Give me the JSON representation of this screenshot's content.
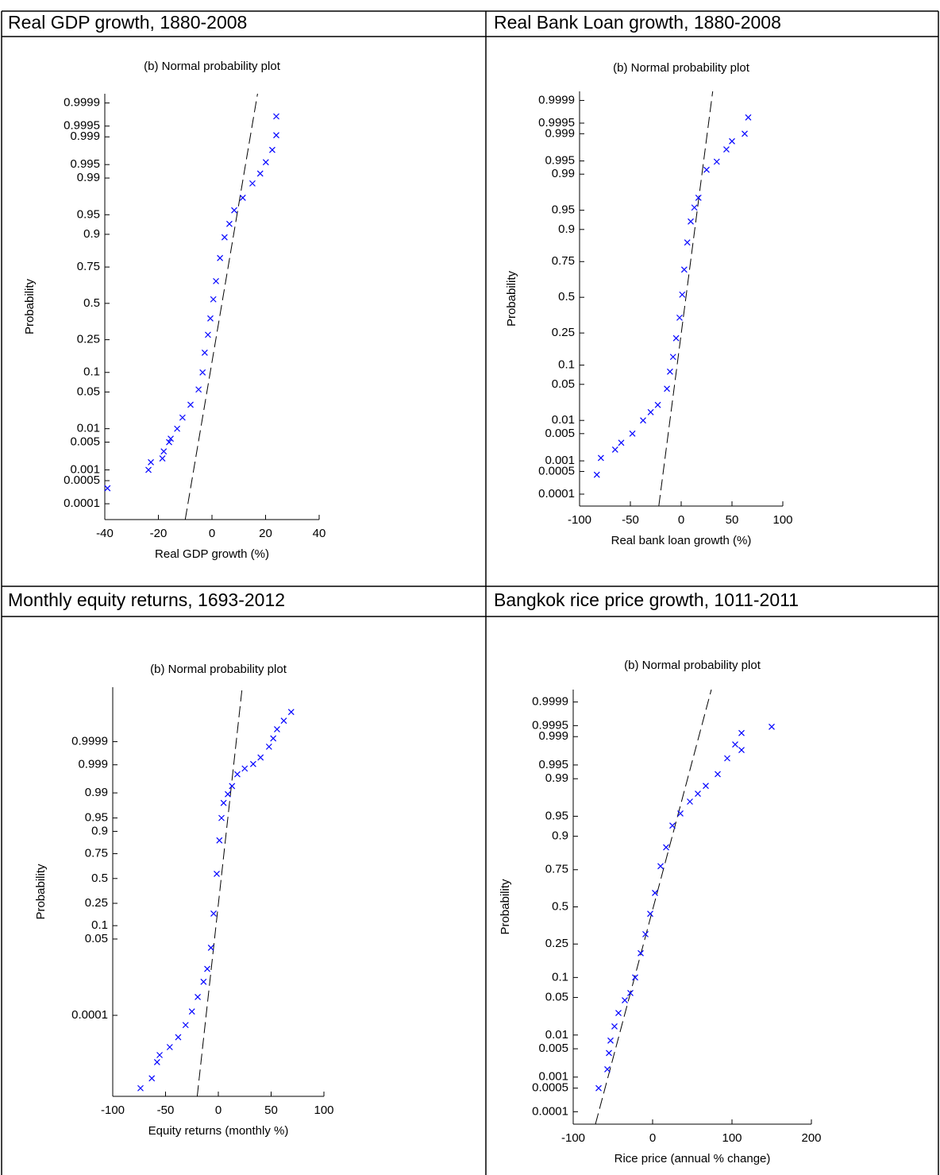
{
  "chart_data": [
    {
      "type": "scatter",
      "caption": "Real GDP growth, 1880-2008",
      "title": "(b) Normal probability plot",
      "xlabel": "Real GDP growth (%)",
      "ylabel": "Probability",
      "y_scale": "probit",
      "color": "#0000ff",
      "xlim": [
        -40,
        40
      ],
      "xticks": [
        -40,
        -20,
        0,
        20,
        40
      ],
      "ylim": [
        3e-05,
        0.99995
      ],
      "yticks": [
        0.0001,
        0.0005,
        0.001,
        0.005,
        0.01,
        0.05,
        0.1,
        0.25,
        0.5,
        0.75,
        0.9,
        0.95,
        0.99,
        0.995,
        0.999,
        0.9995,
        0.9999
      ],
      "x": [
        -39,
        -23.7,
        -22.8,
        -18.5,
        -18,
        -16,
        -15.4,
        -13,
        -11,
        -8,
        -5,
        -3.5,
        -2.7,
        -1.5,
        -0.6,
        0.5,
        1.5,
        3,
        4.7,
        6.5,
        8.3,
        11.5,
        15.1,
        18,
        20.1,
        22.5,
        24,
        24
      ],
      "values": [
        0.0003,
        0.001,
        0.0016,
        0.002,
        0.003,
        0.005,
        0.006,
        0.01,
        0.017,
        0.03,
        0.055,
        0.1,
        0.18,
        0.28,
        0.39,
        0.53,
        0.66,
        0.8,
        0.89,
        0.93,
        0.958,
        0.975,
        0.987,
        0.992,
        0.9956,
        0.9978,
        0.9991,
        0.99974
      ],
      "reference_line": {
        "x": [
          -10,
          17
        ],
        "y": [
          3e-05,
          0.99995
        ]
      }
    },
    {
      "type": "scatter",
      "caption": "Real Bank Loan growth, 1880-2008",
      "title": "(b) Normal probability plot",
      "xlabel": "Real bank loan growth (%)",
      "ylabel": "Probability",
      "y_scale": "probit",
      "color": "#0000ff",
      "xlim": [
        -100,
        100
      ],
      "xticks": [
        -100,
        -50,
        0,
        50,
        100
      ],
      "ylim": [
        4e-05,
        0.99995
      ],
      "yticks": [
        0.0001,
        0.0005,
        0.001,
        0.005,
        0.01,
        0.05,
        0.1,
        0.25,
        0.5,
        0.75,
        0.9,
        0.95,
        0.99,
        0.995,
        0.999,
        0.9995,
        0.9999
      ],
      "x": [
        -83,
        -79,
        -65,
        -59,
        -48,
        -37.5,
        -30,
        -23,
        -14,
        -11,
        -8,
        -5,
        -1.6,
        1,
        3,
        6,
        9.4,
        13,
        17,
        25,
        35,
        44.5,
        50,
        62.5,
        66
      ],
      "values": [
        0.0004,
        0.0012,
        0.002,
        0.003,
        0.005,
        0.01,
        0.015,
        0.021,
        0.042,
        0.08,
        0.13,
        0.22,
        0.35,
        0.52,
        0.7,
        0.85,
        0.924,
        0.955,
        0.97,
        0.992,
        0.9948,
        0.9974,
        0.9984,
        0.999,
        0.99966
      ],
      "reference_line": {
        "x": [
          -22,
          31
        ],
        "y": [
          4e-05,
          0.99995
        ]
      }
    },
    {
      "type": "scatter",
      "caption": "Monthly equity returns, 1693-2012",
      "title": "(b) Normal probability plot",
      "xlabel": "Equity returns (monthly %)",
      "ylabel": "Probability",
      "y_scale": "probit",
      "color": "#0000ff",
      "xlim": [
        -100,
        100
      ],
      "xticks": [
        -100,
        -50,
        0,
        50,
        100
      ],
      "ylim": [
        1.6e-09,
        0.9999999
      ],
      "yticks": [
        0.0001,
        0.05,
        0.1,
        0.25,
        0.5,
        0.75,
        0.9,
        0.95,
        0.99,
        0.999,
        0.9999
      ],
      "x": [
        -73.7,
        -63,
        -58,
        -55.6,
        -46,
        -38,
        -31,
        -25,
        -19.5,
        -14,
        -10.5,
        -7,
        -4.5,
        -1.5,
        1,
        3,
        5,
        9,
        13,
        18,
        25,
        33,
        40,
        48,
        52,
        55.6,
        62,
        69
      ],
      "values": [
        6e-09,
        2.8e-08,
        3e-07,
        8e-07,
        2.3e-06,
        8e-06,
        3.4e-05,
        0.00015,
        0.00064,
        0.0025,
        0.007,
        0.03,
        0.17,
        0.55,
        0.85,
        0.95,
        0.98,
        0.989,
        0.994,
        0.9977,
        0.9986,
        0.99907,
        0.9995,
        0.99983,
        0.99993,
        0.999975,
        0.999991,
        0.999997
      ],
      "reference_line": {
        "x": [
          -20,
          22.6
        ],
        "y": [
          1.6e-09,
          0.9999999
        ]
      }
    },
    {
      "type": "scatter",
      "caption": "Bangkok rice price growth, 1011-2011",
      "title": "(b) Normal probability plot",
      "xlabel": "Rice price (annual % change)",
      "ylabel": "Probability",
      "y_scale": "probit",
      "color": "#0000ff",
      "xlim": [
        -100,
        200
      ],
      "xticks": [
        -100,
        0,
        100,
        200
      ],
      "ylim": [
        4e-05,
        0.99996
      ],
      "yticks": [
        0.0001,
        0.0005,
        0.001,
        0.005,
        0.01,
        0.05,
        0.1,
        0.25,
        0.5,
        0.75,
        0.9,
        0.95,
        0.99,
        0.995,
        0.999,
        0.9995,
        0.9999
      ],
      "x": [
        -68,
        -57,
        -55,
        -53,
        -48,
        -43,
        -35,
        -28,
        -22,
        -15,
        -9,
        -3,
        3,
        10,
        17,
        25,
        35,
        47,
        57,
        67,
        82,
        94,
        104,
        112,
        112,
        150
      ],
      "values": [
        0.0005,
        0.0016,
        0.004,
        0.0076,
        0.015,
        0.027,
        0.045,
        0.059,
        0.1,
        0.2,
        0.31,
        0.45,
        0.6,
        0.77,
        0.86,
        0.93,
        0.955,
        0.972,
        0.98,
        0.986,
        0.992,
        0.9965,
        0.9984,
        0.9978,
        0.9992,
        0.99946
      ],
      "reference_line": {
        "x": [
          -72,
          74
        ],
        "y": [
          4e-05,
          0.99996
        ]
      }
    }
  ]
}
